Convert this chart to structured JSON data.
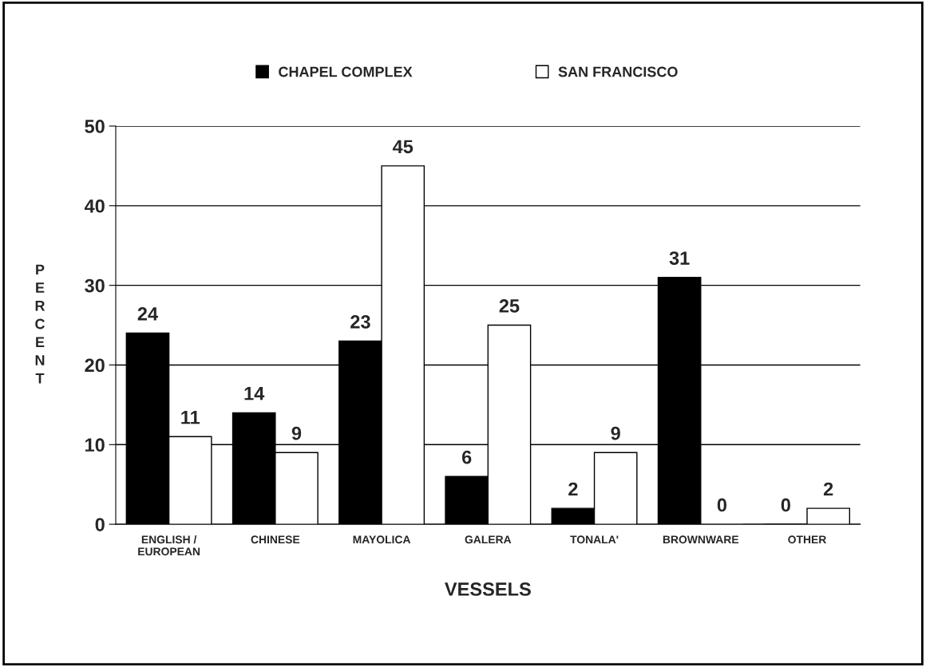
{
  "chart_data": {
    "type": "bar",
    "categories": [
      "ENGLISH /\nEUROPEAN",
      "CHINESE",
      "MAYOLICA",
      "GALERA",
      "TONALA'",
      "BROWNWARE",
      "OTHER"
    ],
    "series": [
      {
        "name": "CHAPEL COMPLEX",
        "color": "#000000",
        "values": [
          24,
          14,
          23,
          6,
          2,
          31,
          0
        ]
      },
      {
        "name": "SAN FRANCISCO",
        "color": "#ffffff",
        "values": [
          11,
          9,
          45,
          25,
          9,
          0,
          2
        ]
      }
    ],
    "xlabel": "VESSELS",
    "ylabel": "PERCENT",
    "ylim": [
      0,
      50
    ],
    "yticks": [
      0,
      10,
      20,
      30,
      40,
      50
    ],
    "grid": "y",
    "legend": "top",
    "data_labels": true
  }
}
